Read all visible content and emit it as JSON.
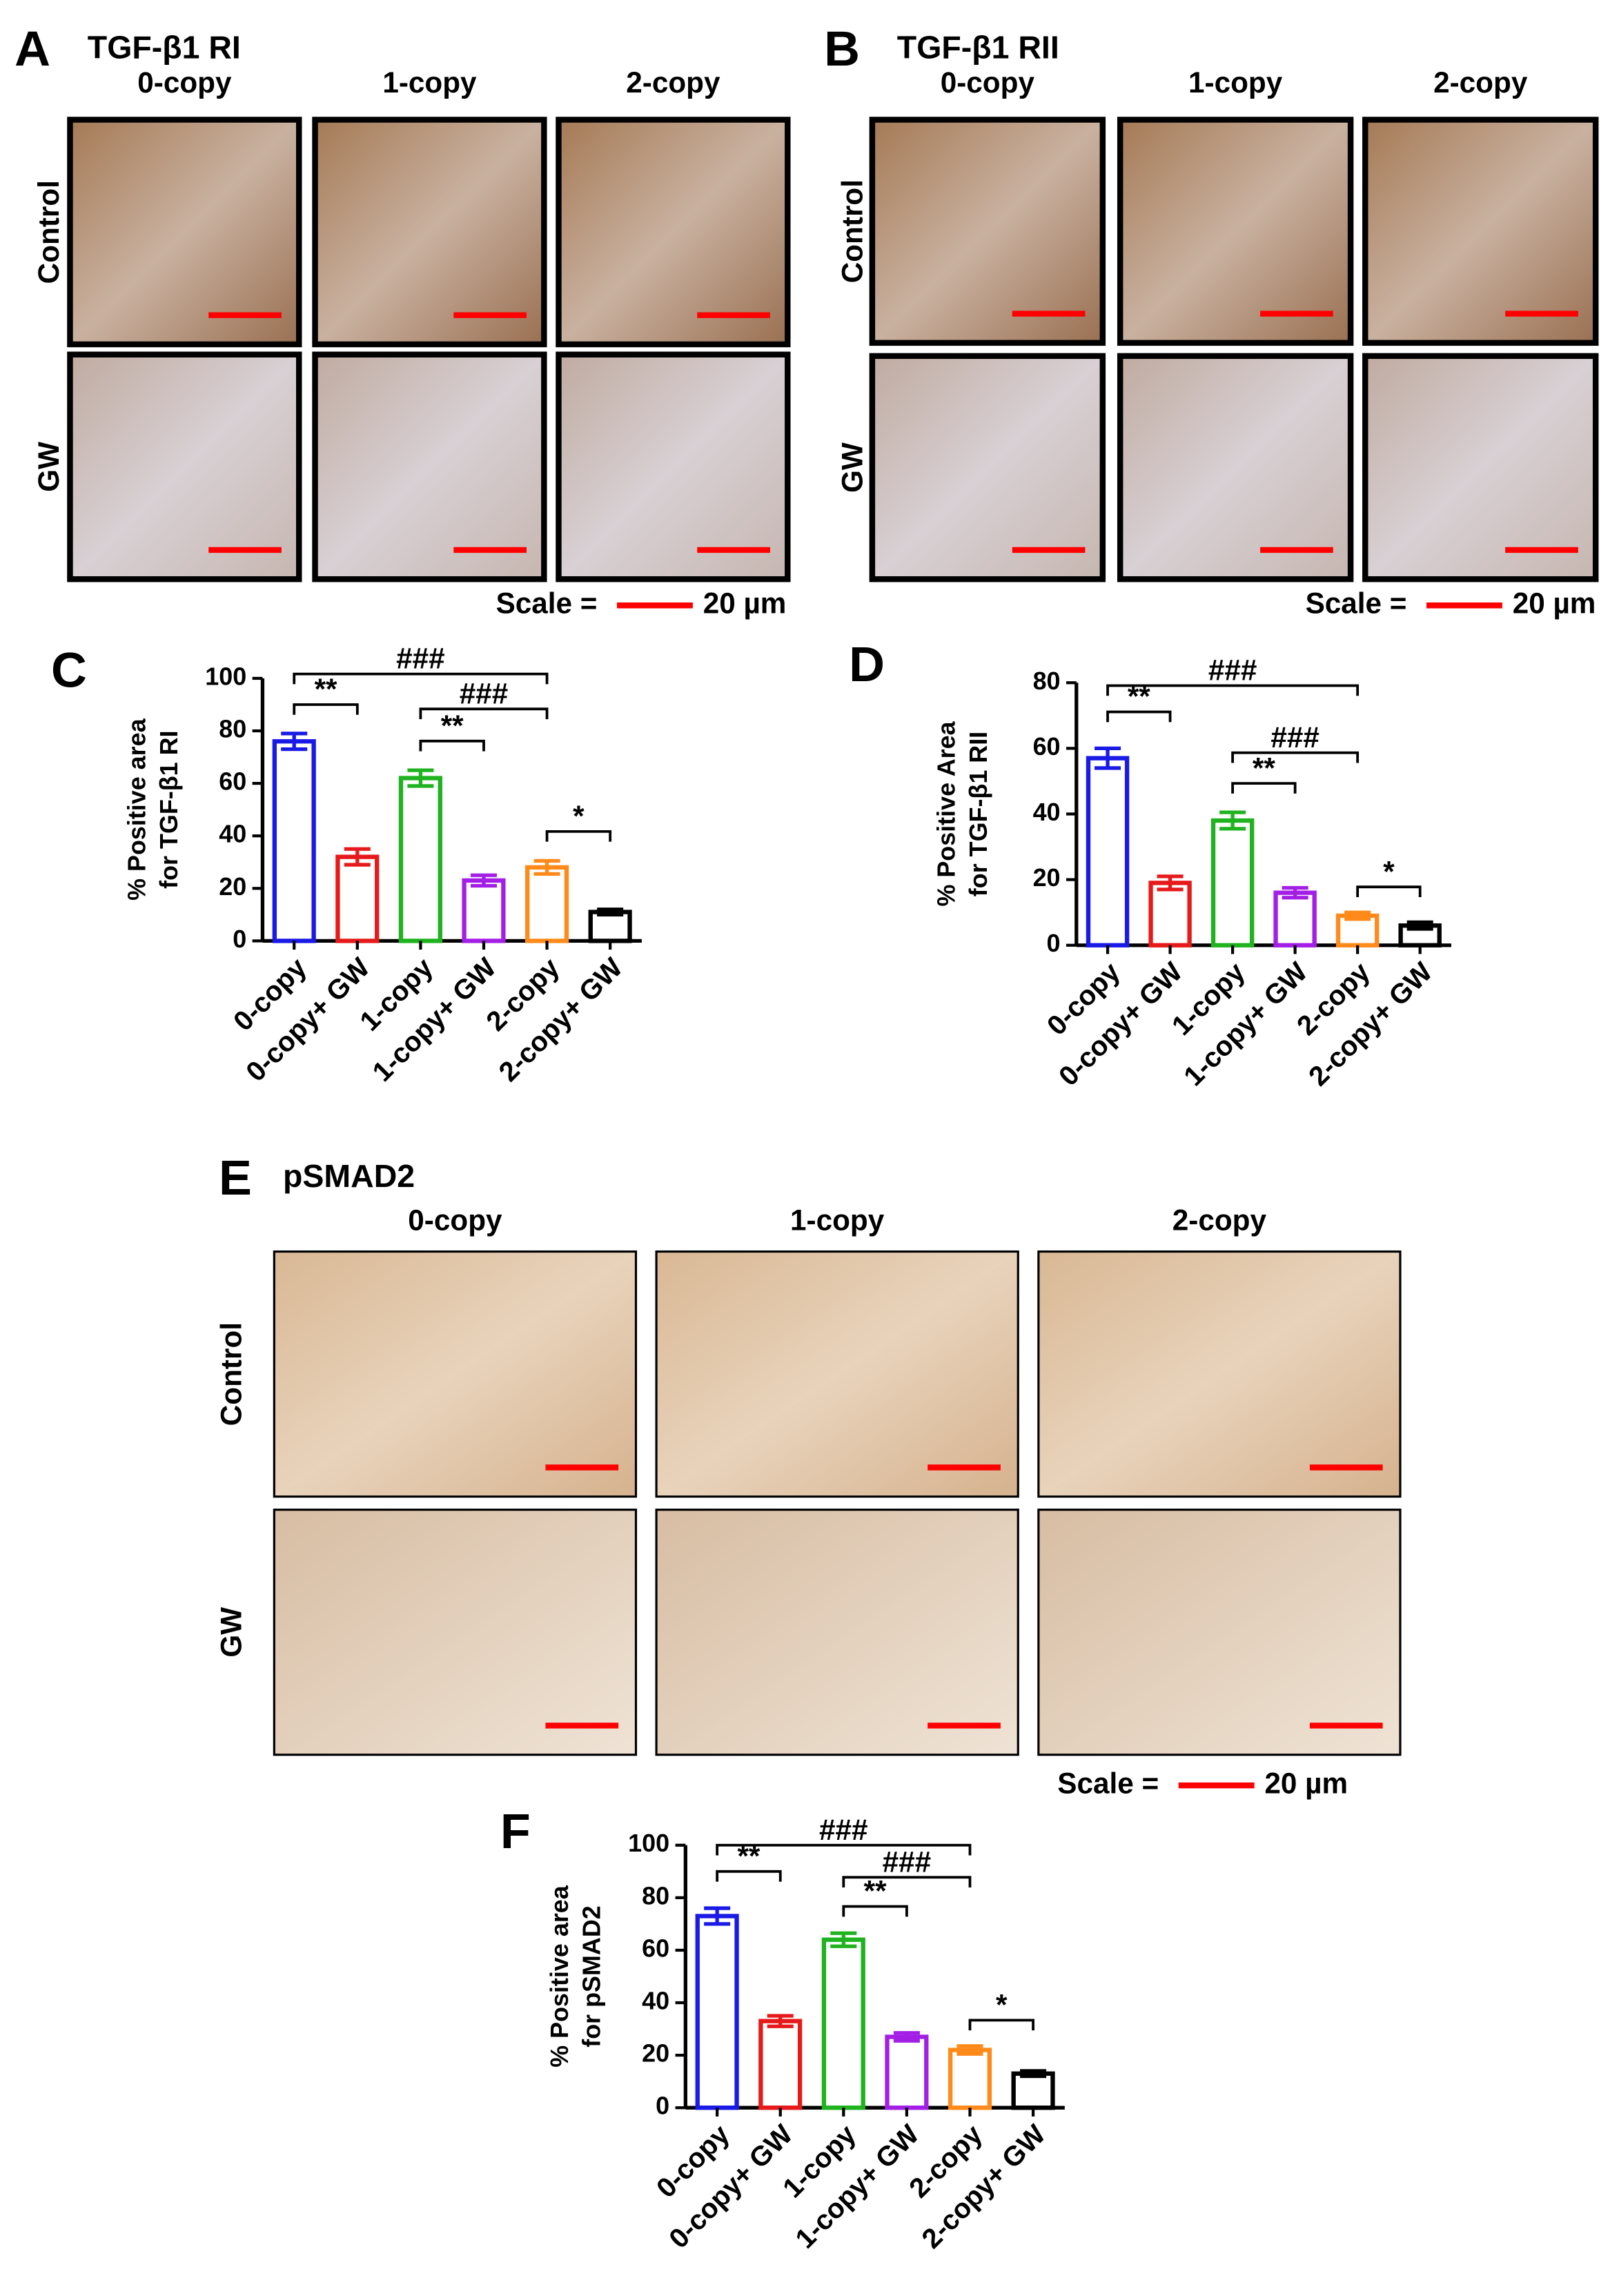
{
  "panels": [
    {
      "label": "A",
      "title": "TGF-β1  RI",
      "columns": [
        "0-copy",
        "1-copy",
        "2-copy"
      ],
      "rows": [
        "Control",
        "GW"
      ],
      "scale_label": "Scale =",
      "scale_value": "20 µm"
    },
    {
      "label": "B",
      "title": "TGF-β1  RII",
      "columns": [
        "0-copy",
        "1-copy",
        "2-copy"
      ],
      "rows": [
        "Control",
        "GW"
      ],
      "scale_label": "Scale =",
      "scale_value": "20 µm"
    },
    {
      "label": "E",
      "title": "pSMAD2",
      "columns": [
        "0-copy",
        "1-copy",
        "2-copy"
      ],
      "rows": [
        "Control",
        "GW"
      ],
      "scale_label": "Scale =",
      "scale_value": "20 µm"
    }
  ],
  "chart_data": [
    {
      "type": "bar",
      "label": "C",
      "ylabel": [
        "% Positive area",
        "for TGF-β1 RI"
      ],
      "categories": [
        "0-copy",
        "0-copy+ GW",
        "1-copy",
        "1-copy+ GW",
        "2-copy",
        "2-copy+ GW"
      ],
      "values": [
        76,
        32,
        62,
        23,
        28,
        11
      ],
      "errors": [
        3,
        3,
        3,
        2,
        2.5,
        1
      ],
      "colors": [
        "#1a1ae6",
        "#e61a1a",
        "#1fb31f",
        "#a31fe6",
        "#ff8a1a",
        "#000000"
      ],
      "ylim": [
        0,
        100
      ],
      "yticks": [
        0,
        20,
        40,
        60,
        80,
        100
      ],
      "annotations": [
        "###",
        "**",
        "###",
        "**",
        "*"
      ]
    },
    {
      "type": "bar",
      "label": "D",
      "ylabel": [
        "% Positive Area",
        "for TGF-β1 RII"
      ],
      "categories": [
        "0-copy",
        "0-copy+ GW",
        "1-copy",
        "1-copy+ GW",
        "2-copy",
        "2-copy+ GW"
      ],
      "values": [
        57,
        19,
        38,
        16,
        9,
        6
      ],
      "errors": [
        3,
        2,
        2.5,
        1.5,
        1,
        1
      ],
      "colors": [
        "#1a1ae6",
        "#e61a1a",
        "#1fb31f",
        "#a31fe6",
        "#ff8a1a",
        "#000000"
      ],
      "ylim": [
        0,
        80
      ],
      "yticks": [
        0,
        20,
        40,
        60,
        80
      ],
      "annotations": [
        "###",
        "**",
        "###",
        "**",
        "*"
      ]
    },
    {
      "type": "bar",
      "label": "F",
      "ylabel": [
        "% Positive area",
        "for pSMAD2"
      ],
      "categories": [
        "0-copy",
        "0-copy+ GW",
        "1-copy",
        "1-copy+ GW",
        "2-copy",
        "2-copy+ GW"
      ],
      "values": [
        73,
        33,
        64,
        27,
        22,
        13
      ],
      "errors": [
        3,
        2,
        2.5,
        1.5,
        1.5,
        1
      ],
      "colors": [
        "#1a1ae6",
        "#e61a1a",
        "#1fb31f",
        "#a31fe6",
        "#ff8a1a",
        "#000000"
      ],
      "ylim": [
        0,
        100
      ],
      "yticks": [
        0,
        20,
        40,
        60,
        80,
        100
      ],
      "annotations": [
        "###",
        "**",
        "###",
        "**",
        "*"
      ]
    }
  ]
}
